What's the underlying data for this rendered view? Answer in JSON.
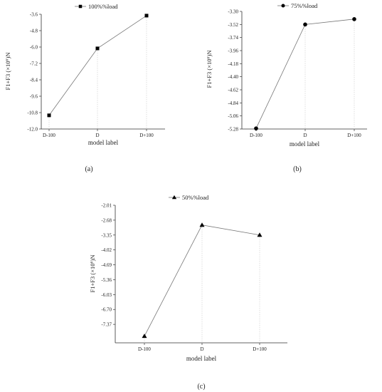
{
  "chart_data": [
    {
      "type": "line",
      "panel_label": "(a)",
      "legend": "100%%load",
      "marker": "square",
      "categories": [
        "D-100",
        "D",
        "D+100"
      ],
      "values": [
        -11.0,
        -6.1,
        -3.7
      ],
      "xlabel": "model label",
      "ylabel": "F1+F3 (×10⁶)N",
      "ylim": [
        -12.0,
        -3.6
      ],
      "yticks": [
        "-3.6",
        "-4.8",
        "-6.0",
        "-7.2",
        "-8.4",
        "-9.6",
        "-10.8",
        "-12.0"
      ],
      "grid": "vertical dotted guides at categories"
    },
    {
      "type": "line",
      "panel_label": "(b)",
      "legend": "75%%load",
      "marker": "circle",
      "categories": [
        "D-100",
        "D",
        "D+100"
      ],
      "values": [
        -5.27,
        -3.52,
        -3.43
      ],
      "xlabel": "model label",
      "ylabel": "F1+F3 (×10⁶)N",
      "ylim": [
        -5.28,
        -3.3
      ],
      "yticks": [
        "-3.30",
        "-3.52",
        "-3.74",
        "-3.96",
        "-4.18",
        "-4.40",
        "-4.62",
        "-4.84",
        "-5.06",
        "-5.28"
      ],
      "grid": "vertical dotted guides at categories"
    },
    {
      "type": "line",
      "panel_label": "(c)",
      "legend": "50%%load",
      "marker": "triangle",
      "categories": [
        "D-100",
        "D",
        "D+100"
      ],
      "values": [
        -7.9,
        -2.9,
        -3.35
      ],
      "xlabel": "model label",
      "ylabel": "F1+F3 (×10⁶)N",
      "ylim": [
        -8.2,
        -2.01
      ],
      "yticks": [
        "-2.01",
        "-2.68",
        "-3.35",
        "-4.02",
        "-4.69",
        "-5.36",
        "-6.03",
        "-6.70",
        "-7.37"
      ],
      "grid": "vertical dotted guides at categories"
    }
  ]
}
